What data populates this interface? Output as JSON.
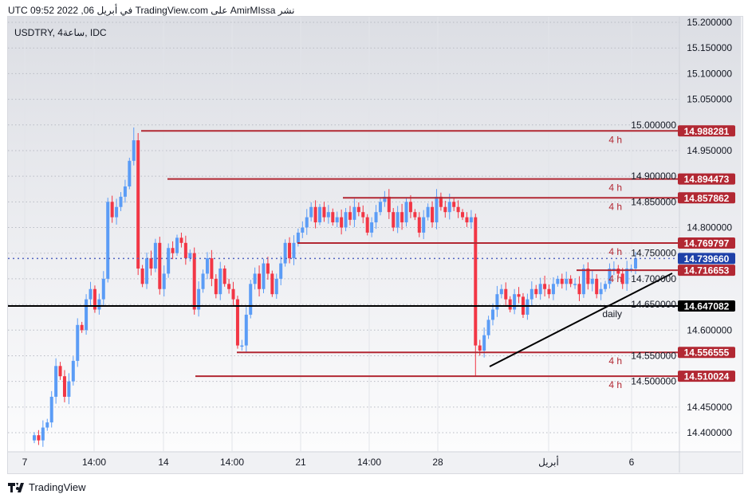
{
  "header": {
    "publish_line": "UTC في أبريل 06, 2022 09:52 TradingView.com على AmirMIssa نشر"
  },
  "chart": {
    "symbol_line": "USDTRY, 4ساعة, IDC",
    "colors": {
      "up": "#5b9cf6",
      "down": "#f23645",
      "level": "#b22833",
      "daily": "#000000",
      "current": "#1e40a8"
    },
    "price_ticks": [
      "15.200000",
      "15.150000",
      "15.100000",
      "15.050000",
      "15.000000",
      "14.950000",
      "14.900000",
      "14.850000",
      "14.800000",
      "14.750000",
      "14.700000",
      "14.650000",
      "14.600000",
      "14.550000",
      "14.500000",
      "14.450000",
      "14.400000"
    ],
    "time_ticks": [
      "7",
      "14:00",
      "14",
      "14:00",
      "21",
      "14:00",
      "28",
      "أبريل",
      "6"
    ],
    "levels": [
      {
        "price": "14.988281",
        "tf": "4 h"
      },
      {
        "price": "14.894473",
        "tf": "4 h"
      },
      {
        "price": "14.857862",
        "tf": "4 h"
      },
      {
        "price": "14.769797",
        "tf": "4 h"
      },
      {
        "price": "14.716653",
        "tf": "4 h"
      },
      {
        "price": "14.556555",
        "tf": "4 h"
      },
      {
        "price": "14.510024",
        "tf": "4 h"
      }
    ],
    "daily_level": {
      "price": "14.647082",
      "tf": "daily"
    },
    "current_price": "14.739660",
    "closes": [
      14.395,
      14.385,
      14.41,
      14.42,
      14.47,
      14.53,
      14.51,
      14.47,
      14.5,
      14.54,
      14.61,
      14.6,
      14.66,
      14.68,
      14.64,
      14.66,
      14.7,
      14.85,
      14.82,
      14.84,
      14.86,
      14.88,
      14.93,
      14.97,
      14.72,
      14.69,
      14.74,
      14.72,
      14.77,
      14.68,
      14.71,
      14.76,
      14.75,
      14.78,
      14.77,
      14.74,
      14.75,
      14.64,
      14.68,
      14.71,
      14.74,
      14.7,
      14.67,
      14.72,
      14.69,
      14.68,
      14.66,
      14.57,
      14.57,
      14.63,
      14.69,
      14.71,
      14.68,
      14.73,
      14.71,
      14.67,
      14.7,
      14.73,
      14.77,
      14.74,
      14.77,
      14.79,
      14.8,
      14.82,
      14.84,
      14.81,
      14.84,
      14.82,
      14.83,
      14.81,
      14.82,
      14.8,
      14.83,
      14.815,
      14.84,
      14.83,
      14.82,
      14.79,
      14.81,
      14.83,
      14.85,
      14.86,
      14.83,
      14.8,
      14.83,
      14.81,
      14.85,
      14.83,
      14.82,
      14.79,
      14.82,
      14.84,
      14.81,
      14.86,
      14.84,
      14.83,
      14.85,
      14.84,
      14.83,
      14.82,
      14.81,
      14.82,
      14.57,
      14.56,
      14.59,
      14.62,
      14.64,
      14.67,
      14.68,
      14.66,
      14.64,
      14.67,
      14.665,
      14.63,
      14.66,
      14.68,
      14.67,
      14.69,
      14.68,
      14.67,
      14.69,
      14.7,
      14.69,
      14.7,
      14.69,
      14.69,
      14.67,
      14.72,
      14.69,
      14.7,
      14.67,
      14.68,
      14.69,
      14.72,
      14.72,
      14.71,
      14.69,
      14.72,
      14.72,
      14.74
    ]
  },
  "footer": {
    "brand": "TradingView"
  }
}
